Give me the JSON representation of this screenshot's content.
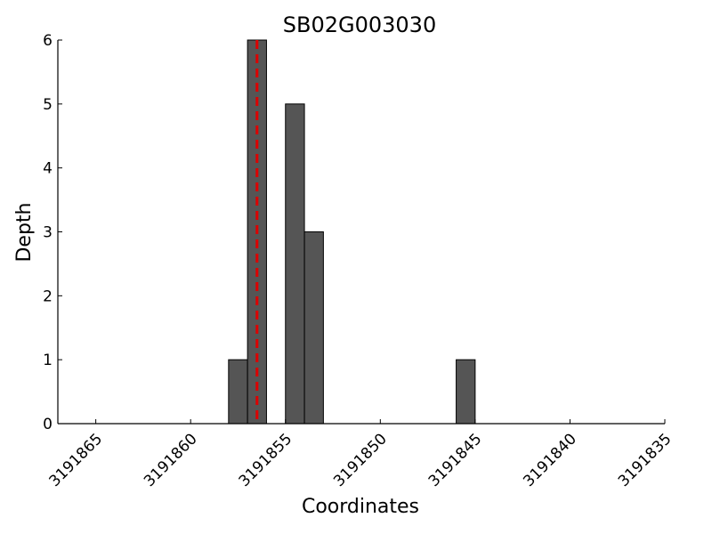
{
  "chart_data": {
    "type": "histogram",
    "title": "SB02G003030",
    "xlabel": "Coordinates",
    "ylabel": "Depth",
    "bins": [
      3191858,
      3191857,
      3191856,
      3191855,
      3191854,
      3191853,
      3191852,
      3191851,
      3191850,
      3191849,
      3191848,
      3191847,
      3191846,
      3191845
    ],
    "counts": [
      1,
      6,
      0,
      5,
      3,
      0,
      0,
      0,
      0,
      0,
      0,
      0,
      1
    ],
    "color": "#555555",
    "vline": {
      "value": 3191856.5,
      "color": "#dd0000"
    },
    "xlim": [
      3191867,
      3191835
    ],
    "xticks": [
      3191865,
      3191860,
      3191855,
      3191850,
      3191845,
      3191840,
      3191835
    ],
    "ylim": [
      0,
      6
    ],
    "yticks": [
      0,
      1,
      2,
      3,
      4,
      5,
      6
    ]
  }
}
